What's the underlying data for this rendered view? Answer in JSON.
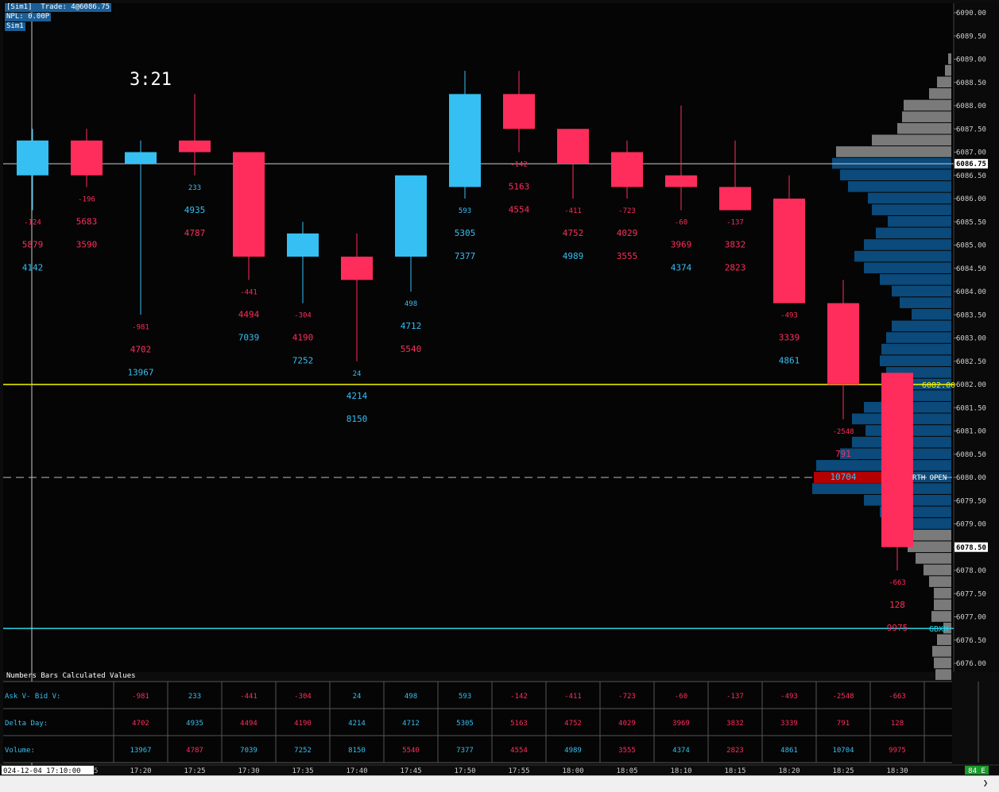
{
  "hud": {
    "line1": "[Sim1]  Trade: 4@6086.75",
    "line2": "NPL: 0.00P",
    "line3": "Sim1"
  },
  "timer": "3:21",
  "price_axis": {
    "ticks": [
      "6090.00",
      "6089.50",
      "6089.00",
      "6088.50",
      "6088.00",
      "6087.50",
      "6087.00",
      "6086.50",
      "6086.00",
      "6085.50",
      "6085.00",
      "6084.50",
      "6084.00",
      "6083.50",
      "6083.00",
      "6082.50",
      "6082.00",
      "6081.50",
      "6081.00",
      "6080.50",
      "6080.00",
      "6079.50",
      "6079.00",
      "6078.50",
      "6078.00",
      "6077.50",
      "6077.00",
      "6076.50",
      "6076.00"
    ],
    "current_price_label": "6086.75",
    "last_label": "6078.50",
    "level_label": "6082.00",
    "rth_label": "RTH OPEN",
    "gbx_label": "GBXH"
  },
  "time_axis": {
    "start_label": "024-12-04  17:10:00",
    "start_suffix": "5",
    "labels": [
      "17:20",
      "17:25",
      "17:30",
      "17:35",
      "17:40",
      "17:45",
      "17:50",
      "17:55",
      "18:00",
      "18:05",
      "18:10",
      "18:15",
      "18:20",
      "18:25",
      "18:30"
    ],
    "badge": "84 E"
  },
  "colors": {
    "up": "#35bff2",
    "down": "#ff2d5c",
    "profile": "#0b4a7a",
    "profile_gray": "#7a7a7a",
    "yellow": "#f5f500",
    "cyan": "#27d6e8",
    "rth": "#b30000"
  },
  "chart_data": {
    "type": "candlestick",
    "ylim": [
      6075.75,
      6090.25
    ],
    "candles": [
      {
        "o": 6086.5,
        "h": 6087.5,
        "l": 6085.75,
        "c": 6087.25,
        "delta": "-124",
        "dd": "5879",
        "vol": "4142",
        "dd_col": "down",
        "vol_col": "up",
        "ly": -1
      },
      {
        "o": 6087.25,
        "h": 6087.5,
        "l": 6086.25,
        "c": 6086.5,
        "delta": "-196",
        "dd": "5683",
        "vol": "3590",
        "dd_col": "down",
        "vol_col": "down",
        "ly": -1
      },
      {
        "o": 6086.75,
        "h": 6087.25,
        "l": 6083.5,
        "c": 6087.0,
        "delta": "-981",
        "dd": "4702",
        "vol": "13967",
        "dd_col": "down",
        "vol_col": "up",
        "ly": -1
      },
      {
        "o": 6087.25,
        "h": 6088.25,
        "l": 6086.5,
        "c": 6087.0,
        "delta": "233",
        "dd": "4935",
        "vol": "4787",
        "dd_col": "up",
        "vol_col": "down",
        "ly": -1
      },
      {
        "o": 6087.0,
        "h": 6087.0,
        "l": 6084.25,
        "c": 6084.75,
        "delta": "-441",
        "dd": "4494",
        "vol": "7039",
        "dd_col": "down",
        "vol_col": "up",
        "ly": -1
      },
      {
        "o": 6084.75,
        "h": 6085.5,
        "l": 6083.75,
        "c": 6085.25,
        "delta": "-304",
        "dd": "4190",
        "vol": "7252",
        "dd_col": "down",
        "vol_col": "up",
        "ly": -1
      },
      {
        "o": 6084.75,
        "h": 6085.25,
        "l": 6082.5,
        "c": 6084.25,
        "delta": "24",
        "dd": "4214",
        "vol": "8150",
        "dd_col": "up",
        "vol_col": "up",
        "ly": -1
      },
      {
        "o": 6084.75,
        "h": 6086.5,
        "l": 6084.0,
        "c": 6086.5,
        "delta": "498",
        "dd": "4712",
        "vol": "5540",
        "dd_col": "up",
        "vol_col": "down",
        "ly": -1
      },
      {
        "o": 6086.25,
        "h": 6088.75,
        "l": 6086.0,
        "c": 6088.25,
        "delta": "593",
        "dd": "5305",
        "vol": "7377",
        "dd_col": "up",
        "vol_col": "up",
        "ly": -1
      },
      {
        "o": 6088.25,
        "h": 6088.75,
        "l": 6087.0,
        "c": 6087.5,
        "delta": "-142",
        "dd": "5163",
        "vol": "4554",
        "dd_col": "down",
        "vol_col": "down",
        "ly": -1
      },
      {
        "o": 6087.5,
        "h": 6087.5,
        "l": 6086.0,
        "c": 6086.75,
        "delta": "-411",
        "dd": "4752",
        "vol": "4989",
        "dd_col": "down",
        "vol_col": "up",
        "ly": -1
      },
      {
        "o": 6087.0,
        "h": 6087.25,
        "l": 6086.0,
        "c": 6086.25,
        "delta": "-723",
        "dd": "4029",
        "vol": "3555",
        "dd_col": "down",
        "vol_col": "down",
        "ly": -1
      },
      {
        "o": 6086.5,
        "h": 6088.0,
        "l": 6085.75,
        "c": 6086.25,
        "delta": "-60",
        "dd": "3969",
        "vol": "4374",
        "dd_col": "down",
        "vol_col": "up",
        "ly": -1
      },
      {
        "o": 6086.25,
        "h": 6087.25,
        "l": 6085.75,
        "c": 6085.75,
        "delta": "-137",
        "dd": "3832",
        "vol": "2823",
        "dd_col": "down",
        "vol_col": "down",
        "ly": -1
      },
      {
        "o": 6086.0,
        "h": 6086.5,
        "l": 6083.75,
        "c": 6083.75,
        "delta": "-493",
        "dd": "3339",
        "vol": "4861",
        "dd_col": "down",
        "vol_col": "up",
        "ly": -1
      },
      {
        "o": 6083.75,
        "h": 6084.25,
        "l": 6081.25,
        "c": 6082.0,
        "delta": "-2548",
        "dd": "791",
        "vol": "10704",
        "dd_col": "down",
        "vol_col": "up",
        "ly": -1
      },
      {
        "o": 6082.25,
        "h": 6082.25,
        "l": 6078.0,
        "c": 6078.5,
        "delta": "-663",
        "dd": "128",
        "vol": "9975",
        "dd_col": "down",
        "vol_col": "down",
        "ly": -1
      }
    ],
    "levels": {
      "current": 6086.75,
      "yellow": 6082.0,
      "rth": 6080.0,
      "gbx": 6076.75
    }
  },
  "table": {
    "title": "Numbers Bars Calculated Values",
    "rows": [
      {
        "label": "Ask V- Bid V:",
        "values": [
          "-981",
          "233",
          "-441",
          "-304",
          "24",
          "498",
          "593",
          "-142",
          "-411",
          "-723",
          "-60",
          "-137",
          "-493",
          "-2548",
          "-663"
        ]
      },
      {
        "label": "Delta Day:",
        "values": [
          "4702",
          "4935",
          "4494",
          "4190",
          "4214",
          "4712",
          "5305",
          "5163",
          "4752",
          "4029",
          "3969",
          "3832",
          "3339",
          "791",
          "128"
        ]
      },
      {
        "label": "Volume:",
        "values": [
          "13967",
          "4787",
          "7039",
          "7252",
          "8150",
          "5540",
          "7377",
          "4554",
          "4989",
          "3555",
          "4374",
          "2823",
          "4861",
          "10704",
          "9975"
        ]
      }
    ],
    "colors": [
      [
        "down",
        "up",
        "down",
        "down",
        "up",
        "up",
        "up",
        "down",
        "down",
        "down",
        "down",
        "down",
        "down",
        "down",
        "down"
      ],
      [
        "down",
        "up",
        "down",
        "down",
        "up",
        "up",
        "up",
        "down",
        "down",
        "down",
        "down",
        "down",
        "down",
        "down",
        "down"
      ],
      [
        "up",
        "down",
        "up",
        "up",
        "up",
        "down",
        "up",
        "down",
        "up",
        "down",
        "up",
        "down",
        "up",
        "up",
        "down"
      ]
    ]
  }
}
